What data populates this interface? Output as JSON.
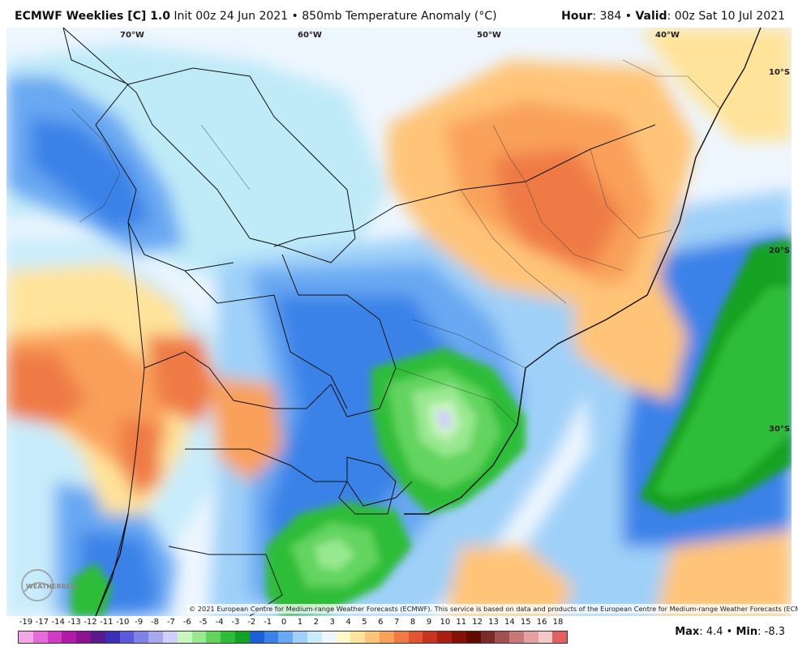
{
  "header": {
    "product": "ECMWF Weeklies [C] 1.0",
    "init": "Init 00z 24 Jun 2021",
    "separator": "•",
    "field": "850mb Temperature Anomaly (°C)",
    "hour_label": "Hour",
    "hour_value": ": 384",
    "valid_label": "Valid",
    "valid_value": ": 00z Sat 10 Jul 2021"
  },
  "lon_labels": [
    "70°W",
    "60°W",
    "50°W",
    "40°W"
  ],
  "lat_labels": [
    "10°S",
    "20°S",
    "30°S"
  ],
  "copyright": "© 2021 European Centre for Medium-range Weather Forecasts (ECMWF). This service is based on data and products of the European Centre for Medium-range Weather Forecasts (ECMWF).",
  "logo_text": "WEATHERBELL",
  "colorbar": {
    "labels": [
      "-19",
      "-17",
      "-14",
      "-13",
      "-12",
      "-11",
      "-10",
      "-9",
      "-8",
      "-7",
      "-6",
      "-5",
      "-4",
      "-3",
      "-2",
      "-1",
      "0",
      "1",
      "2",
      "3",
      "4",
      "5",
      "6",
      "7",
      "8",
      "9",
      "10",
      "11",
      "12",
      "13",
      "14",
      "15",
      "16",
      "18"
    ],
    "colors": [
      "#f4a6e6",
      "#e86ad8",
      "#d03ac4",
      "#b01aa8",
      "#8c1290",
      "#5a1a8c",
      "#3b2fb8",
      "#5a5adc",
      "#7f82e8",
      "#a7a8f0",
      "#d0cffa",
      "#c8f5c0",
      "#98e890",
      "#62d45e",
      "#2ebd38",
      "#14a224",
      "#1d5fd6",
      "#3a82e8",
      "#69a8f2",
      "#9fd0f8",
      "#c8ecfb",
      "#eef6ff",
      "#fff8c8",
      "#ffe39a",
      "#ffc478",
      "#f9a05a",
      "#ef7a44",
      "#e25530",
      "#c93420",
      "#a81f12",
      "#841008",
      "#620a04",
      "#7a2a2a",
      "#a25050",
      "#c77878",
      "#e6a0a0",
      "#f5c8c8",
      "#e46060"
    ]
  },
  "stats": {
    "max_label": "Max",
    "max_value": ": 4.4",
    "min_label": "Min",
    "min_value": ": -8.3",
    "separator": "•"
  }
}
